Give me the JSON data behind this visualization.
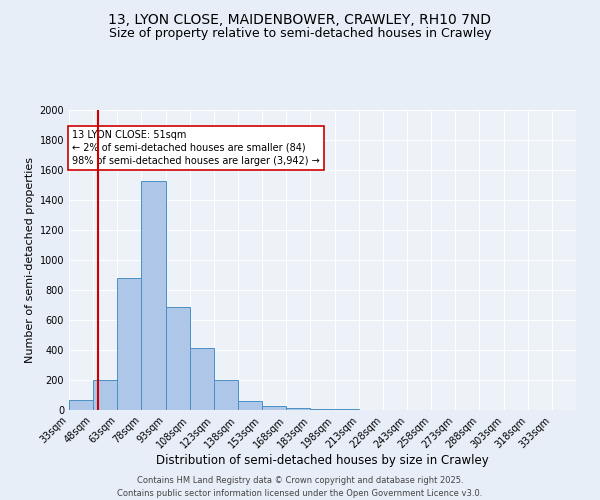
{
  "title1": "13, LYON CLOSE, MAIDENBOWER, CRAWLEY, RH10 7ND",
  "title2": "Size of property relative to semi-detached houses in Crawley",
  "xlabel": "Distribution of semi-detached houses by size in Crawley",
  "ylabel": "Number of semi-detached properties",
  "bin_labels": [
    "33sqm",
    "48sqm",
    "63sqm",
    "78sqm",
    "93sqm",
    "108sqm",
    "123sqm",
    "138sqm",
    "153sqm",
    "168sqm",
    "183sqm",
    "198sqm",
    "213sqm",
    "228sqm",
    "243sqm",
    "258sqm",
    "273sqm",
    "288sqm",
    "303sqm",
    "318sqm",
    "333sqm"
  ],
  "bar_values": [
    65,
    200,
    880,
    1530,
    690,
    415,
    200,
    60,
    30,
    15,
    10,
    5,
    0,
    0,
    0,
    0,
    0,
    0,
    0,
    0,
    0
  ],
  "bin_edges": [
    33,
    48,
    63,
    78,
    93,
    108,
    123,
    138,
    153,
    168,
    183,
    198,
    213,
    228,
    243,
    258,
    273,
    288,
    303,
    318,
    333
  ],
  "bar_color": "#aec6e8",
  "bar_edge_color": "#4a90c4",
  "property_value": 51,
  "red_line_color": "#cc0000",
  "annotation_line1": "13 LYON CLOSE: 51sqm",
  "annotation_line2": "← 2% of semi-detached houses are smaller (84)",
  "annotation_line3": "98% of semi-detached houses are larger (3,942) →",
  "annotation_box_color": "#ffffff",
  "annotation_box_edge": "#cc0000",
  "background_color": "#e8eef8",
  "plot_bg_color": "#edf1f8",
  "grid_color": "#ffffff",
  "ylim": [
    0,
    2000
  ],
  "yticks": [
    0,
    200,
    400,
    600,
    800,
    1000,
    1200,
    1400,
    1600,
    1800,
    2000
  ],
  "footer_text": "Contains HM Land Registry data © Crown copyright and database right 2025.\nContains public sector information licensed under the Open Government Licence v3.0.",
  "title1_fontsize": 10,
  "title2_fontsize": 9,
  "xlabel_fontsize": 8.5,
  "ylabel_fontsize": 8,
  "tick_fontsize": 7,
  "footer_fontsize": 6,
  "annotation_fontsize": 7
}
